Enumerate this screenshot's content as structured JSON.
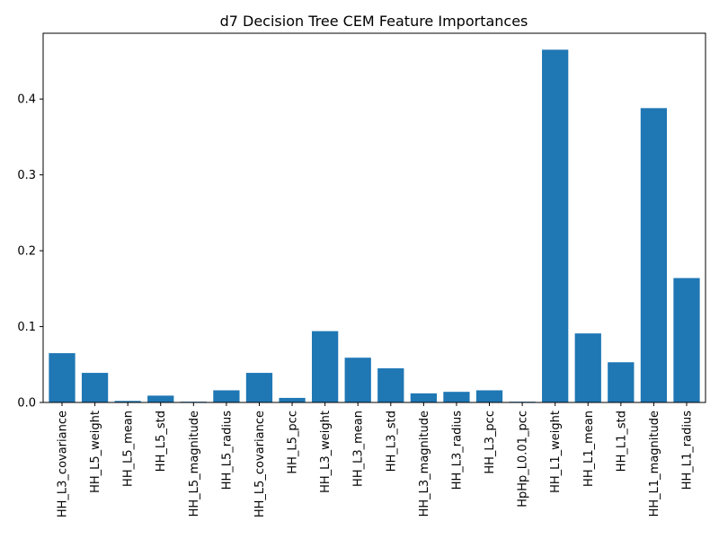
{
  "chart_data": {
    "type": "bar",
    "title": "d7 Decision Tree CEM Feature Importances",
    "xlabel": "",
    "ylabel": "",
    "categories": [
      "HH_L3_covariance",
      "HH_L5_weight",
      "HH_L5_mean",
      "HH_L5_std",
      "HH_L5_magnitude",
      "HH_L5_radius",
      "HH_L5_covariance",
      "HH_L5_pcc",
      "HH_L3_weight",
      "HH_L3_mean",
      "HH_L3_std",
      "HH_L3_magnitude",
      "HH_L3_radius",
      "HH_L3_pcc",
      "HpHp_L0.01_pcc",
      "HH_L1_weight",
      "HH_L1_mean",
      "HH_L1_std",
      "HH_L1_magnitude",
      "HH_L1_radius"
    ],
    "values": [
      0.065,
      0.039,
      0.002,
      0.009,
      0.001,
      0.016,
      0.039,
      0.006,
      0.094,
      0.059,
      0.045,
      0.012,
      0.014,
      0.016,
      0.001,
      0.465,
      0.091,
      0.053,
      0.388,
      0.164
    ],
    "ylim": [
      0,
      0.4867
    ],
    "yticks": [
      0.0,
      0.1,
      0.2,
      0.3,
      0.4
    ],
    "ytick_labels": [
      "0.0",
      "0.1",
      "0.2",
      "0.3",
      "0.4"
    ],
    "bar_color": "#1f77b4",
    "grid": false,
    "legend": "none"
  }
}
